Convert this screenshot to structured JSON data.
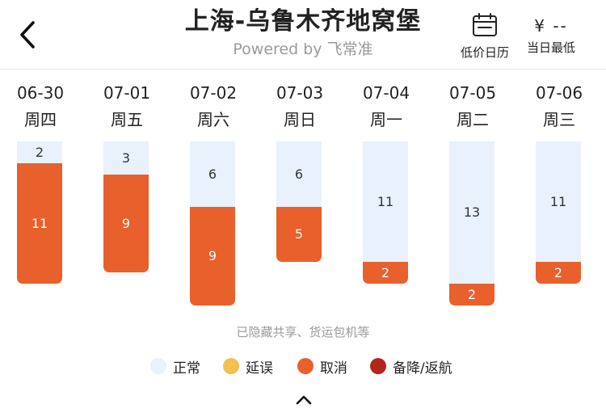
{
  "header": {
    "title": "上海-乌鲁木齐地窝堡",
    "subtitle": "Powered by 飞常准",
    "calendar_label": "低价日历",
    "low_price_value": "¥ --",
    "low_price_label": "当日最低"
  },
  "days": [
    {
      "date": "06-30",
      "weekday": "周四",
      "normal": 2,
      "cancel": 11
    },
    {
      "date": "07-01",
      "weekday": "周五",
      "normal": 3,
      "cancel": 9
    },
    {
      "date": "07-02",
      "weekday": "周六",
      "normal": 6,
      "cancel": 9
    },
    {
      "date": "07-03",
      "weekday": "周日",
      "normal": 6,
      "cancel": 5
    },
    {
      "date": "07-04",
      "weekday": "周一",
      "normal": 11,
      "cancel": 2
    },
    {
      "date": "07-05",
      "weekday": "周二",
      "normal": 13,
      "cancel": 2
    },
    {
      "date": "07-06",
      "weekday": "周三",
      "normal": 11,
      "cancel": 2
    }
  ],
  "note": "已隐藏共享、货运包机等",
  "legend": [
    {
      "label": "正常",
      "color": "#e8f1fc"
    },
    {
      "label": "延误",
      "color": "#f4c04e"
    },
    {
      "label": "取消",
      "color": "#e8602c"
    },
    {
      "label": "备降/返航",
      "color": "#b3261e"
    }
  ],
  "icons": {
    "back": "chevron-left-icon",
    "calendar": "calendar-icon",
    "collapse": "chevron-up-icon"
  }
}
